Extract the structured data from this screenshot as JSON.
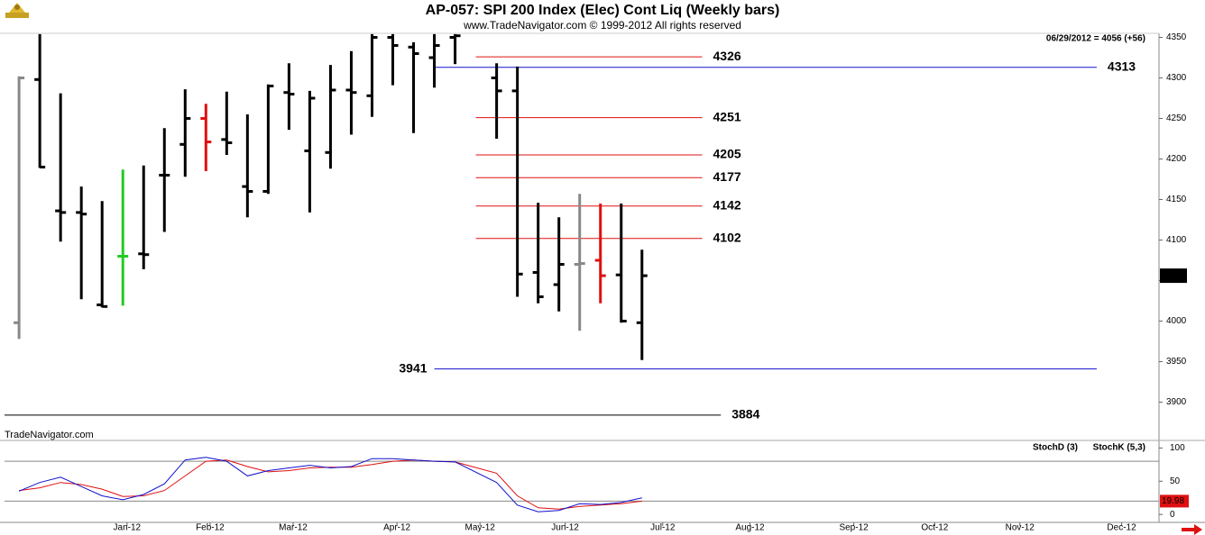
{
  "chart_data": [
    {
      "type": "ohlc",
      "title": "AP-057:  SPI 200 Index (Elec) Cont Liq  (Weekly bars)",
      "subtitle": "www.TradeNavigator.com © 1999-2012 All rights reserved",
      "note": "06/29/2012 = 4056 (+56)",
      "watermark": "TradeNavigator.com",
      "xlim": [
        -0.7,
        54.9
      ],
      "x": [
        0,
        1,
        2,
        3,
        4,
        5,
        6,
        7,
        8,
        9,
        10,
        11,
        12,
        13,
        14,
        15,
        16,
        17,
        18,
        19,
        20,
        21,
        23,
        24,
        25,
        26,
        27,
        28,
        29,
        30
      ],
      "open": [
        3998,
        4298,
        4136,
        4134,
        4020,
        4080,
        4083,
        4180,
        4218,
        4250,
        4224,
        4166,
        4160,
        4282,
        4210,
        4208,
        4285,
        4278,
        4350,
        4338,
        4325,
        4350,
        4300,
        4284,
        4060,
        4045,
        4070,
        4075,
        4057,
        3998
      ],
      "high": [
        4302,
        4354,
        4281,
        4166,
        4148,
        4187,
        4192,
        4238,
        4286,
        4268,
        4283,
        4255,
        4292,
        4318,
        4284,
        4316,
        4333,
        4354,
        4354,
        4344,
        4354,
        4354,
        4318,
        4314,
        4146,
        4128,
        4157,
        4145,
        4145,
        4088
      ],
      "low": [
        3978,
        4189,
        4098,
        4027,
        4017,
        4019,
        4064,
        4110,
        4178,
        4185,
        4205,
        4128,
        4157,
        4236,
        4134,
        4188,
        4230,
        4252,
        4291,
        4232,
        4288,
        4317,
        4225,
        4030,
        4022,
        4012,
        3988,
        4022,
        3998,
        3952
      ],
      "close": [
        4300,
        4190,
        4134,
        4132,
        4018,
        4080,
        4082,
        4180,
        4250,
        4221,
        4220,
        4160,
        4290,
        4280,
        4275,
        4285,
        4282,
        4350,
        4340,
        4330,
        4340,
        4352,
        4284,
        4058,
        4030,
        4070,
        4071,
        4056,
        4000,
        4056
      ],
      "colors": [
        "#888888",
        "#000000",
        "#000000",
        "#000000",
        "#000000",
        "#22cc22",
        "#000000",
        "#000000",
        "#000000",
        "#e01010",
        "#000000",
        "#000000",
        "#000000",
        "#000000",
        "#000000",
        "#000000",
        "#000000",
        "#000000",
        "#000000",
        "#000000",
        "#000000",
        "#000000",
        "#000000",
        "#000000",
        "#000000",
        "#000000",
        "#888888",
        "#e01010",
        "#000000",
        "#000000"
      ],
      "ylim": [
        3855,
        4355
      ],
      "yticks": [
        3900,
        3950,
        4000,
        4050,
        4100,
        4150,
        4200,
        4250,
        4300,
        4350
      ],
      "levels": [
        {
          "value": 4326,
          "color": "#e01010",
          "from": 22,
          "to": 32.9,
          "label_side": "right"
        },
        {
          "value": 4313,
          "color": "#1010cc",
          "from": 20,
          "to": 51.9,
          "label_side": "right"
        },
        {
          "value": 4251,
          "color": "#e01010",
          "from": 22,
          "to": 32.9,
          "label_side": "right"
        },
        {
          "value": 4205,
          "color": "#e01010",
          "from": 22,
          "to": 32.9,
          "label_side": "right"
        },
        {
          "value": 4177,
          "color": "#e01010",
          "from": 22,
          "to": 32.9,
          "label_side": "right"
        },
        {
          "value": 4142,
          "color": "#e01010",
          "from": 22,
          "to": 32.9,
          "label_side": "right"
        },
        {
          "value": 4102,
          "color": "#e01010",
          "from": 22,
          "to": 32.9,
          "label_side": "right"
        },
        {
          "value": 3941,
          "color": "#1010cc",
          "from": 20,
          "to": 51.9,
          "label_side": "left"
        },
        {
          "value": 3884,
          "color": "#000000",
          "from": -0.7,
          "to": 33.8,
          "label_side": "right"
        }
      ]
    },
    {
      "type": "line",
      "xlim": [
        -0.7,
        54.9
      ],
      "x": [
        0,
        1,
        2,
        3,
        4,
        5,
        6,
        7,
        8,
        9,
        10,
        11,
        12,
        13,
        14,
        15,
        16,
        17,
        18,
        19,
        20,
        21,
        23,
        24,
        25,
        26,
        27,
        28,
        29,
        30
      ],
      "series": [
        {
          "name": "StochD (3)",
          "color": "#e01010",
          "values": [
            36,
            40,
            48,
            45,
            38,
            27,
            28,
            36,
            58,
            80,
            82,
            72,
            64,
            66,
            70,
            71,
            71,
            75,
            80,
            82,
            80,
            79,
            62,
            28,
            10,
            8,
            12,
            14,
            16,
            19.98
          ]
        },
        {
          "name": "StochK (5,3)",
          "color": "#1010cc",
          "values": [
            35,
            48,
            56,
            42,
            28,
            22,
            30,
            46,
            82,
            86,
            80,
            58,
            66,
            70,
            74,
            70,
            72,
            84,
            84,
            82,
            80,
            79,
            48,
            14,
            4,
            6,
            16,
            15,
            18,
            25
          ]
        }
      ],
      "ylim": [
        -12,
        110
      ],
      "yticks": [
        0,
        50,
        100
      ],
      "reference_lines": [
        20,
        80
      ],
      "xticks": [
        {
          "value": 5.2,
          "label": "Jan-12"
        },
        {
          "value": 9.2,
          "label": "Feb-12"
        },
        {
          "value": 13.2,
          "label": "Mar-12"
        },
        {
          "value": 18.2,
          "label": "Apr-12"
        },
        {
          "value": 22.2,
          "label": "May-12"
        },
        {
          "value": 26.3,
          "label": "Jun-12"
        },
        {
          "value": 31.0,
          "label": "Jul-12"
        },
        {
          "value": 35.2,
          "label": "Aug-12"
        },
        {
          "value": 40.2,
          "label": "Sep-12"
        },
        {
          "value": 44.1,
          "label": "Oct-12"
        },
        {
          "value": 48.2,
          "label": "Nov-12"
        },
        {
          "value": 53.1,
          "label": "Dec-12"
        }
      ]
    }
  ]
}
